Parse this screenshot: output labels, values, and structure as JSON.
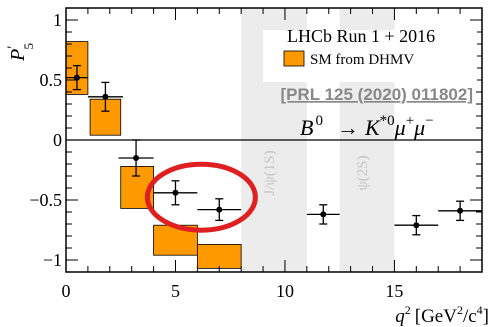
{
  "chart_data": {
    "type": "scatter",
    "ylabel_main": "P",
    "ylabel_prime": "′",
    "ylabel_sub": "5",
    "xlabel_q": "q",
    "xlabel_q_sup": "2",
    "xlabel_units_open": "[GeV",
    "xlabel_units_sup1": "2",
    "xlabel_units_mid": "/c",
    "xlabel_units_sup2": "4",
    "xlabel_units_close": "]",
    "xlim": [
      0,
      19
    ],
    "ylim": [
      -1.1,
      1.1
    ],
    "xticks": [
      0,
      5,
      10,
      15
    ],
    "xtick_labels": [
      "0",
      "5",
      "10",
      "15"
    ],
    "yticks": [
      -1,
      -0.5,
      0,
      0.5,
      1
    ],
    "ytick_labels": [
      "−1",
      "−0.5",
      "0",
      "0.5",
      "1"
    ],
    "zero_line": true,
    "excluded_regions": [
      {
        "x": [
          8.0,
          11.0
        ],
        "label": "J/ψ(1S)"
      },
      {
        "x": [
          12.5,
          15.0
        ],
        "label": "ψ(2S)"
      }
    ],
    "data_points": {
      "name": "LHCb Run 1 + 2016",
      "x": [
        0.5,
        1.8,
        3.2,
        5.0,
        7.0,
        11.75,
        16.0,
        18.0
      ],
      "xerr": [
        0.5,
        0.8,
        0.8,
        1.0,
        1.0,
        0.75,
        1.0,
        1.0
      ],
      "y": [
        0.52,
        0.36,
        -0.15,
        -0.44,
        -0.58,
        -0.62,
        -0.71,
        -0.59
      ],
      "yerr": [
        0.1,
        0.12,
        0.15,
        0.1,
        0.09,
        0.08,
        0.08,
        0.08
      ]
    },
    "sm_prediction": {
      "name": "SM from DHMV",
      "color": "#FF9900",
      "bins": [
        {
          "x0": 0.0,
          "x1": 1.0,
          "y0": 0.38,
          "y1": 0.82
        },
        {
          "x0": 1.1,
          "x1": 2.5,
          "y0": 0.04,
          "y1": 0.34
        },
        {
          "x0": 2.5,
          "x1": 4.0,
          "y0": -0.57,
          "y1": -0.22
        },
        {
          "x0": 4.0,
          "x1": 6.0,
          "y0": -0.96,
          "y1": -0.71
        },
        {
          "x0": 6.0,
          "x1": 8.0,
          "y0": -1.07,
          "y1": -0.87
        }
      ]
    },
    "legend_title": "LHCb Run 1 + 2016",
    "legend_entry": "SM from DHMV",
    "legend_position": "top-right",
    "reference": "[PRL 125 (2020) 011802]",
    "decay_B": "B",
    "decay_B_sup": "0",
    "decay_arrow": "→",
    "decay_K": "K",
    "decay_K_sup": "*0",
    "decay_mu": "μ",
    "decay_mu_plus": "+",
    "decay_mu_minus": "−",
    "highlight": {
      "type": "ellipse",
      "color": "#E02020",
      "around_points": [
        3,
        4
      ]
    }
  }
}
